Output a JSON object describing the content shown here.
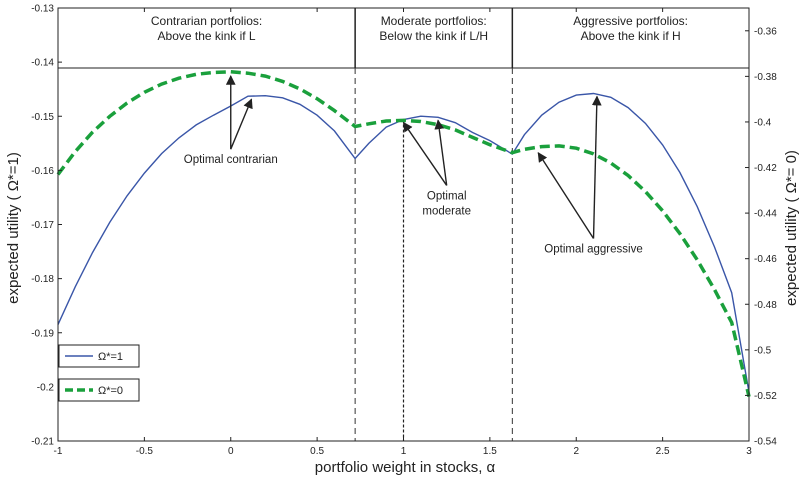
{
  "chart_data": {
    "type": "line",
    "xlabel": "portfolio weight in stocks,  α",
    "ylabel_left": "expected utility ( Ω*=1)",
    "ylabel_right": "expected utility ( Ω*= 0)",
    "xlim": [
      -1,
      3
    ],
    "ylim_left": [
      -0.21,
      -0.13
    ],
    "ylim_right": [
      -0.54,
      -0.35
    ],
    "x_ticks": [
      -1,
      -0.5,
      0,
      0.5,
      1,
      1.5,
      2,
      2.5,
      3
    ],
    "x_tick_labels": [
      "-1",
      "-0.5",
      "0",
      "0.5",
      "1",
      "1.5",
      "2",
      "2.5",
      "3"
    ],
    "y_left_ticks": [
      -0.13,
      -0.14,
      -0.15,
      -0.16,
      -0.17,
      -0.18,
      -0.19,
      -0.2,
      -0.21
    ],
    "y_left_tick_labels": [
      "-0.13",
      "-0.14",
      "-0.15",
      "-0.16",
      "-0.17",
      "-0.18",
      "-0.19",
      "-0.2",
      "-0.21"
    ],
    "y_right_ticks": [
      -0.36,
      -0.38,
      -0.4,
      -0.42,
      -0.44,
      -0.46,
      -0.48,
      -0.5,
      -0.52,
      -0.54
    ],
    "y_right_tick_labels": [
      "-0.36",
      "-0.38",
      "-0.4",
      "-0.42",
      "-0.44",
      "-0.46",
      "-0.48",
      "-0.5",
      "-0.52",
      "-0.54"
    ],
    "regions": [
      {
        "line1": "Contrarian portfolios:",
        "line2": "Above the kink if L",
        "x_start": -1,
        "x_end": 0.72
      },
      {
        "line1": "Moderate portfolios:",
        "line2": "Below the kink if L/H",
        "x_start": 0.72,
        "x_end": 1.63
      },
      {
        "line1": "Aggressive portfolios:",
        "line2": "Above the kink if H",
        "x_start": 1.63,
        "x_end": 3
      }
    ],
    "kinks": [
      0.72,
      1.63
    ],
    "optimal_moderate_x": 1.0,
    "series": [
      {
        "name": "Ω*=1",
        "axis": "left",
        "color": "#3a56a8",
        "style": "solid",
        "x": [
          -1,
          -0.9,
          -0.8,
          -0.7,
          -0.6,
          -0.5,
          -0.4,
          -0.3,
          -0.2,
          -0.1,
          0,
          0.1,
          0.2,
          0.3,
          0.4,
          0.5,
          0.6,
          0.72,
          0.8,
          0.9,
          1.0,
          1.1,
          1.2,
          1.3,
          1.4,
          1.5,
          1.63,
          1.7,
          1.8,
          1.9,
          2.0,
          2.1,
          2.2,
          2.3,
          2.4,
          2.5,
          2.6,
          2.7,
          2.8,
          2.9,
          3.0
        ],
        "y": [
          -0.1885,
          -0.1815,
          -0.1752,
          -0.1696,
          -0.1647,
          -0.1605,
          -0.1569,
          -0.154,
          -0.1516,
          -0.1498,
          -0.1481,
          -0.1463,
          -0.1462,
          -0.1466,
          -0.1478,
          -0.1498,
          -0.1527,
          -0.1578,
          -0.155,
          -0.152,
          -0.1506,
          -0.15,
          -0.1502,
          -0.1512,
          -0.153,
          -0.1545,
          -0.157,
          -0.1534,
          -0.1498,
          -0.1474,
          -0.1461,
          -0.1458,
          -0.1465,
          -0.1484,
          -0.1513,
          -0.1553,
          -0.1604,
          -0.1667,
          -0.1741,
          -0.1826,
          -0.201
        ]
      },
      {
        "name": "Ω*=0",
        "axis": "right",
        "color": "#1aa03c",
        "style": "dashed",
        "x": [
          -1,
          -0.9,
          -0.8,
          -0.7,
          -0.6,
          -0.5,
          -0.4,
          -0.3,
          -0.2,
          -0.1,
          0,
          0.1,
          0.2,
          0.3,
          0.4,
          0.5,
          0.6,
          0.72,
          0.8,
          0.9,
          1.0,
          1.1,
          1.2,
          1.3,
          1.4,
          1.5,
          1.63,
          1.7,
          1.8,
          1.9,
          2.0,
          2.1,
          2.2,
          2.3,
          2.4,
          2.5,
          2.6,
          2.7,
          2.8,
          2.9,
          3.0
        ],
        "y": [
          -0.423,
          -0.413,
          -0.4045,
          -0.3975,
          -0.3917,
          -0.387,
          -0.3834,
          -0.3808,
          -0.3791,
          -0.3783,
          -0.378,
          -0.3786,
          -0.3799,
          -0.3822,
          -0.3855,
          -0.3898,
          -0.395,
          -0.402,
          -0.4008,
          -0.3996,
          -0.3993,
          -0.3998,
          -0.4012,
          -0.4035,
          -0.4068,
          -0.41,
          -0.4135,
          -0.412,
          -0.4108,
          -0.4105,
          -0.4115,
          -0.414,
          -0.418,
          -0.4235,
          -0.4305,
          -0.439,
          -0.449,
          -0.4605,
          -0.4735,
          -0.488,
          -0.5205
        ]
      }
    ],
    "annotations": [
      {
        "label_line1": "Optimal contrarian",
        "label_line2": "",
        "tx": 0.0,
        "ty_left": -0.1583,
        "targets": [
          [
            0.0,
            -0.142
          ],
          [
            0.12,
            -0.1463
          ]
        ]
      },
      {
        "label_line1": "Optimal",
        "label_line2": "moderate",
        "tx": 1.25,
        "ty_left": -0.165,
        "targets": [
          [
            1.0,
            -0.1506
          ],
          [
            1.2,
            -0.1502
          ]
        ]
      },
      {
        "label_line1": "Optimal aggressive",
        "label_line2": "",
        "tx": 2.1,
        "ty_left": -0.1748,
        "targets": [
          [
            1.78,
            -0.1562
          ],
          [
            2.12,
            -0.1458
          ]
        ]
      }
    ],
    "legend": {
      "placement": "bottom-left"
    }
  }
}
